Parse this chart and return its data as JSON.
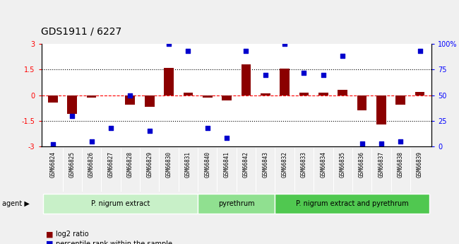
{
  "title": "GDS1911 / 6227",
  "samples": [
    "GSM66824",
    "GSM66825",
    "GSM66826",
    "GSM66827",
    "GSM66828",
    "GSM66829",
    "GSM66830",
    "GSM66831",
    "GSM66840",
    "GSM66841",
    "GSM66842",
    "GSM66843",
    "GSM66832",
    "GSM66833",
    "GSM66834",
    "GSM66835",
    "GSM66836",
    "GSM66837",
    "GSM66838",
    "GSM66839"
  ],
  "log2_ratio": [
    -0.45,
    -1.1,
    -0.15,
    0.0,
    -0.55,
    -0.7,
    1.6,
    0.15,
    -0.15,
    -0.3,
    1.8,
    0.12,
    1.55,
    0.15,
    0.15,
    0.3,
    -0.9,
    -1.7,
    -0.55,
    0.2
  ],
  "percentile_rank": [
    2,
    30,
    5,
    18,
    50,
    15,
    100,
    93,
    18,
    8,
    93,
    70,
    100,
    72,
    70,
    88,
    3,
    3,
    5,
    93
  ],
  "groups": [
    {
      "label": "P. nigrum extract",
      "start": 0,
      "end": 8,
      "color": "#c8f0c8"
    },
    {
      "label": "pyrethrum",
      "start": 8,
      "end": 12,
      "color": "#90e090"
    },
    {
      "label": "P. nigrum extract and pyrethrum",
      "start": 12,
      "end": 20,
      "color": "#50c850"
    }
  ],
  "bar_color": "#8B0000",
  "dot_color": "#0000CD",
  "bar_width": 0.5,
  "ylim_left": [
    -3,
    3
  ],
  "ylim_right": [
    0,
    100
  ],
  "yticks_left": [
    -3,
    -1.5,
    0,
    1.5,
    3
  ],
  "yticks_right": [
    0,
    25,
    50,
    75,
    100
  ],
  "ytick_labels_right": [
    "0",
    "25",
    "50",
    "75",
    "100%"
  ],
  "legend_items": [
    {
      "color": "#8B0000",
      "label": "log2 ratio"
    },
    {
      "color": "#0000CD",
      "label": "percentile rank within the sample"
    }
  ],
  "sample_label_bg": "#c8c8c8",
  "fig_bg": "#f0f0f0"
}
